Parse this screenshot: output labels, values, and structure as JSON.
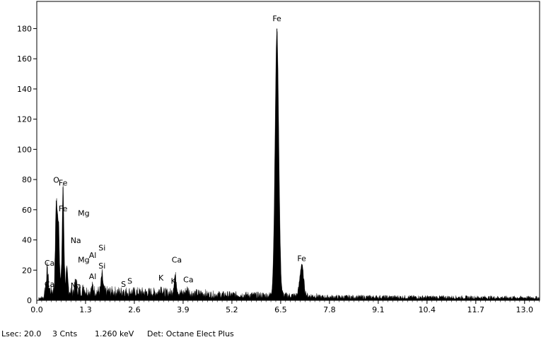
{
  "chart_data": {
    "type": "area",
    "title": "",
    "xlabel": "",
    "ylabel": "",
    "xlim": [
      0.0,
      13.4
    ],
    "ylim": [
      0,
      198
    ],
    "x_ticks": [
      "0.0",
      "1.3",
      "2.6",
      "3.9",
      "5.2",
      "6.5",
      "7.8",
      "9.1",
      "10.4",
      "11.7",
      "13.0"
    ],
    "y_ticks": [
      "20",
      "40",
      "60",
      "80",
      "100",
      "120",
      "140",
      "160",
      "180"
    ],
    "grid": false,
    "series": [
      {
        "peaks": [
          {
            "x": 0.28,
            "y": 22
          },
          {
            "x": 0.52,
            "y": 66
          },
          {
            "x": 0.58,
            "y": 52
          },
          {
            "x": 0.7,
            "y": 75
          },
          {
            "x": 0.8,
            "y": 20
          },
          {
            "x": 1.04,
            "y": 14
          },
          {
            "x": 1.25,
            "y": 9
          },
          {
            "x": 1.49,
            "y": 10
          },
          {
            "x": 1.74,
            "y": 18
          },
          {
            "x": 2.31,
            "y": 7
          },
          {
            "x": 3.31,
            "y": 9
          },
          {
            "x": 3.69,
            "y": 17
          },
          {
            "x": 4.01,
            "y": 8
          },
          {
            "x": 6.4,
            "y": 180
          },
          {
            "x": 7.06,
            "y": 24
          }
        ]
      }
    ],
    "peak_labels": [
      {
        "text": "Fe",
        "x": 6.4,
        "y": 185
      },
      {
        "text": "Fe",
        "x": 7.06,
        "y": 26
      },
      {
        "text": "O",
        "x": 0.52,
        "y": 78
      },
      {
        "text": "Fe",
        "x": 0.7,
        "y": 76
      },
      {
        "text": "Fe",
        "x": 0.7,
        "y": 59
      },
      {
        "text": "Mg",
        "x": 1.25,
        "y": 56
      },
      {
        "text": "Na",
        "x": 1.04,
        "y": 38
      },
      {
        "text": "Si",
        "x": 1.74,
        "y": 33
      },
      {
        "text": "Al",
        "x": 1.49,
        "y": 28
      },
      {
        "text": "Mg",
        "x": 1.25,
        "y": 25
      },
      {
        "text": "Si",
        "x": 1.74,
        "y": 21
      },
      {
        "text": "Ca",
        "x": 0.34,
        "y": 23
      },
      {
        "text": "Al",
        "x": 1.49,
        "y": 14
      },
      {
        "text": "Na",
        "x": 1.04,
        "y": 8
      },
      {
        "text": "Ca",
        "x": 0.34,
        "y": 9
      },
      {
        "text": "S",
        "x": 2.31,
        "y": 9
      },
      {
        "text": "S",
        "x": 2.48,
        "y": 11
      },
      {
        "text": "K",
        "x": 3.31,
        "y": 13
      },
      {
        "text": "K",
        "x": 3.64,
        "y": 11
      },
      {
        "text": "Ca",
        "x": 3.73,
        "y": 25
      },
      {
        "text": "Ca",
        "x": 4.04,
        "y": 12
      }
    ]
  },
  "status": {
    "lsec": "Lsec: 20.0",
    "cnts": "3 Cnts",
    "kev": "1.260 keV",
    "det": "Det: Octane Elect Plus"
  }
}
